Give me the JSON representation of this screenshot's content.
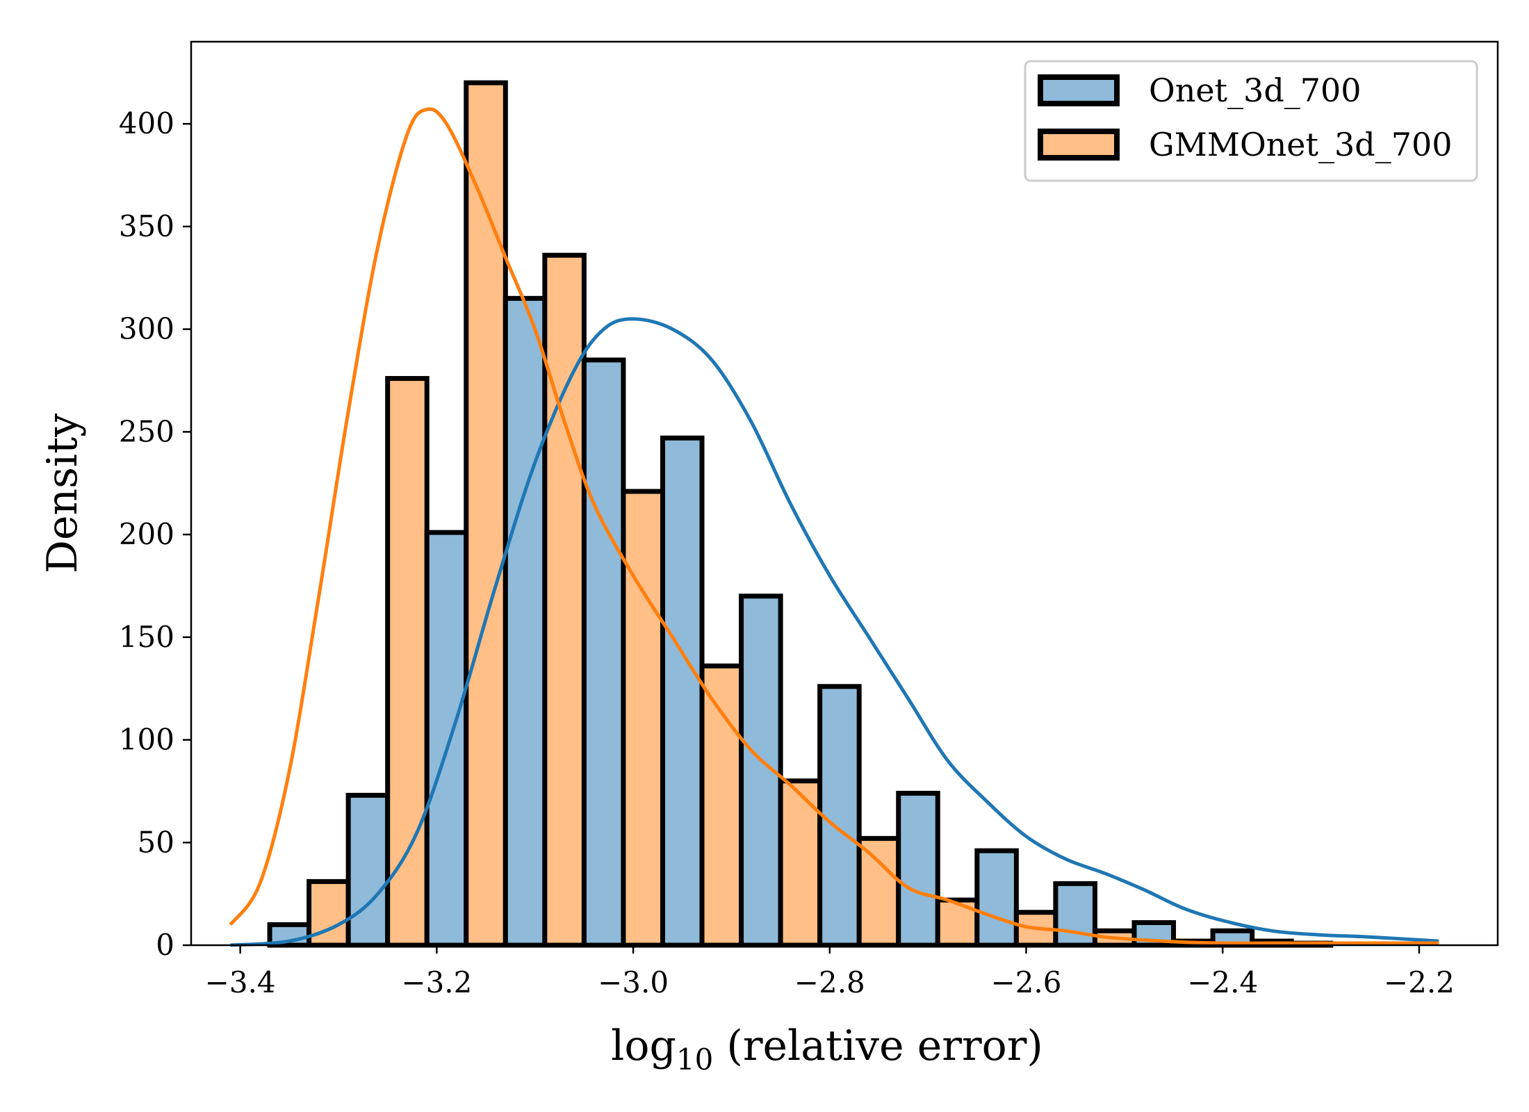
{
  "chart_data": {
    "type": "bar",
    "subtype": "histogram-with-kde",
    "title": "",
    "xlabel_main": "log",
    "xlabel_sub": "10",
    "xlabel_rest": " (relative error)",
    "ylabel": "Density",
    "xlim": [
      -3.45,
      -2.12
    ],
    "ylim": [
      0,
      440
    ],
    "xticks": [
      -3.4,
      -3.2,
      -3.0,
      -2.8,
      -2.6,
      -2.4,
      -2.2
    ],
    "xtick_labels": [
      "−3.4",
      "−3.2",
      "−3.0",
      "−2.8",
      "−2.6",
      "−2.4",
      "−2.2"
    ],
    "yticks": [
      0,
      50,
      100,
      150,
      200,
      250,
      300,
      350,
      400
    ],
    "ytick_labels": [
      "0",
      "50",
      "100",
      "150",
      "200",
      "250",
      "300",
      "350",
      "400"
    ],
    "bins": [
      [
        -3.37,
        -3.29
      ],
      [
        -3.29,
        -3.21
      ],
      [
        -3.21,
        -3.13
      ],
      [
        -3.13,
        -3.05
      ],
      [
        -3.05,
        -2.97
      ],
      [
        -2.97,
        -2.89
      ],
      [
        -2.89,
        -2.81
      ],
      [
        -2.81,
        -2.73
      ],
      [
        -2.73,
        -2.65
      ],
      [
        -2.65,
        -2.57
      ],
      [
        -2.57,
        -2.49
      ],
      [
        -2.49,
        -2.41
      ],
      [
        -2.41,
        -2.33
      ],
      [
        -2.33,
        -2.25
      ]
    ],
    "series": [
      {
        "name": "Onet_3d_700",
        "color": "#1f77b4",
        "fill": "#8fbad9",
        "bin_values": [
          10,
          73,
          201,
          315,
          285,
          247,
          170,
          126,
          74,
          46,
          30,
          11,
          7,
          1
        ],
        "kde": [
          [
            -3.41,
            0
          ],
          [
            -3.35,
            2
          ],
          [
            -3.3,
            10
          ],
          [
            -3.26,
            25
          ],
          [
            -3.22,
            55
          ],
          [
            -3.18,
            110
          ],
          [
            -3.14,
            175
          ],
          [
            -3.1,
            235
          ],
          [
            -3.06,
            280
          ],
          [
            -3.03,
            300
          ],
          [
            -3.0,
            305
          ],
          [
            -2.96,
            300
          ],
          [
            -2.92,
            285
          ],
          [
            -2.88,
            255
          ],
          [
            -2.84,
            215
          ],
          [
            -2.8,
            180
          ],
          [
            -2.76,
            150
          ],
          [
            -2.72,
            120
          ],
          [
            -2.68,
            90
          ],
          [
            -2.64,
            70
          ],
          [
            -2.6,
            53
          ],
          [
            -2.56,
            42
          ],
          [
            -2.52,
            35
          ],
          [
            -2.48,
            27
          ],
          [
            -2.44,
            18
          ],
          [
            -2.4,
            12
          ],
          [
            -2.35,
            7
          ],
          [
            -2.3,
            5
          ],
          [
            -2.25,
            4
          ],
          [
            -2.18,
            2
          ]
        ]
      },
      {
        "name": "GMMOnet_3d_700",
        "color": "#ff7f0e",
        "fill": "#ffbf86",
        "bin_values": [
          31,
          276,
          420,
          336,
          221,
          136,
          80,
          52,
          22,
          16,
          7,
          2,
          2,
          0
        ],
        "kde": [
          [
            -3.41,
            10
          ],
          [
            -3.38,
            30
          ],
          [
            -3.35,
            85
          ],
          [
            -3.32,
            170
          ],
          [
            -3.29,
            260
          ],
          [
            -3.26,
            340
          ],
          [
            -3.23,
            395
          ],
          [
            -3.21,
            407
          ],
          [
            -3.19,
            400
          ],
          [
            -3.16,
            370
          ],
          [
            -3.13,
            335
          ],
          [
            -3.1,
            300
          ],
          [
            -3.07,
            255
          ],
          [
            -3.04,
            215
          ],
          [
            -3.0,
            180
          ],
          [
            -2.96,
            150
          ],
          [
            -2.92,
            120
          ],
          [
            -2.88,
            95
          ],
          [
            -2.84,
            78
          ],
          [
            -2.8,
            60
          ],
          [
            -2.76,
            45
          ],
          [
            -2.72,
            28
          ],
          [
            -2.68,
            22
          ],
          [
            -2.64,
            15
          ],
          [
            -2.6,
            9
          ],
          [
            -2.56,
            7
          ],
          [
            -2.52,
            4
          ],
          [
            -2.48,
            2.5
          ],
          [
            -2.44,
            1.5
          ],
          [
            -2.4,
            1
          ],
          [
            -2.35,
            1
          ],
          [
            -2.3,
            1
          ],
          [
            -2.18,
            1
          ]
        ]
      }
    ],
    "legend": {
      "position": "top-right"
    },
    "grid": false
  }
}
